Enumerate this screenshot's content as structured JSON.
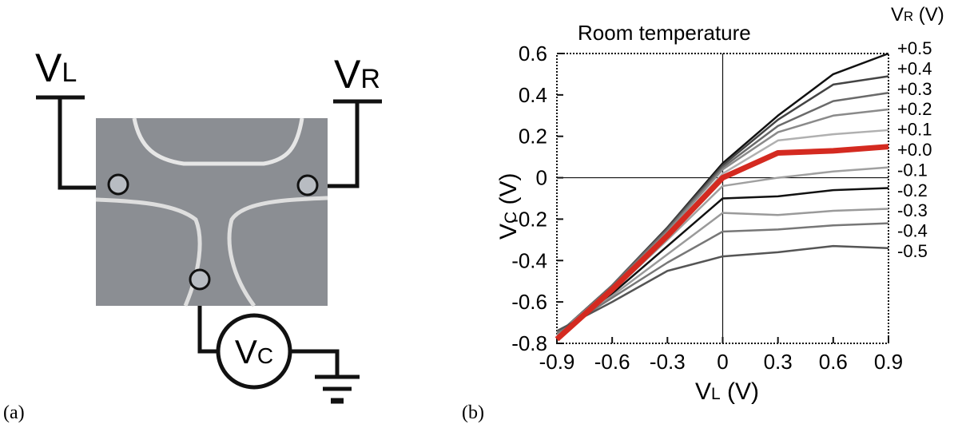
{
  "panel_a": {
    "panel_label": "(a)",
    "left_terminal": [
      "V",
      "L"
    ],
    "right_terminal": [
      "V",
      "R"
    ],
    "meter": [
      "V",
      "C"
    ]
  },
  "panel_b": {
    "panel_label": "(b)"
  },
  "chart_data": {
    "type": "line",
    "title": "Room temperature",
    "xlabel": [
      "V",
      "L",
      " (V)"
    ],
    "ylabel": [
      "V",
      "C",
      " (V)"
    ],
    "legend_title": [
      "V",
      "R",
      " (V)"
    ],
    "x": [
      -0.9,
      -0.6,
      -0.3,
      0,
      0.3,
      0.6,
      0.9
    ],
    "xlim": [
      -0.9,
      0.9
    ],
    "xticks": [
      -0.9,
      -0.6,
      -0.3,
      0,
      0.3,
      0.6,
      0.9
    ],
    "ylim": [
      -0.8,
      0.6
    ],
    "yticks": [
      -0.8,
      -0.6,
      -0.4,
      -0.2,
      0,
      0.2,
      0.4,
      0.6
    ],
    "legend": "right",
    "series": [
      {
        "name": "+0.5",
        "color": "#111111",
        "values": [
          -0.76,
          -0.52,
          -0.24,
          0.07,
          0.3,
          0.5,
          0.6
        ]
      },
      {
        "name": "+0.4",
        "color": "#444444",
        "values": [
          -0.76,
          -0.52,
          -0.24,
          0.06,
          0.28,
          0.45,
          0.49
        ]
      },
      {
        "name": "+0.3",
        "color": "#6a6a6a",
        "values": [
          -0.76,
          -0.52,
          -0.25,
          0.05,
          0.25,
          0.37,
          0.41
        ]
      },
      {
        "name": "+0.2",
        "color": "#8a8a8a",
        "values": [
          -0.76,
          -0.53,
          -0.26,
          0.04,
          0.22,
          0.3,
          0.33
        ]
      },
      {
        "name": "+0.1",
        "color": "#b0b0b0",
        "values": [
          -0.77,
          -0.53,
          -0.27,
          0.02,
          0.18,
          0.21,
          0.23
        ]
      },
      {
        "name": "+0.0",
        "color": "#d42a20",
        "values": [
          -0.78,
          -0.54,
          -0.28,
          0.0,
          0.12,
          0.13,
          0.15
        ]
      },
      {
        "name": "-0.1",
        "color": "#a0a0a0",
        "values": [
          -0.77,
          -0.55,
          -0.3,
          -0.04,
          0.0,
          0.03,
          0.05
        ]
      },
      {
        "name": "-0.2",
        "color": "#111111",
        "values": [
          -0.77,
          -0.56,
          -0.33,
          -0.1,
          -0.09,
          -0.06,
          -0.05
        ]
      },
      {
        "name": "-0.3",
        "color": "#9a9a9a",
        "values": [
          -0.76,
          -0.57,
          -0.37,
          -0.17,
          -0.18,
          -0.16,
          -0.15
        ]
      },
      {
        "name": "-0.4",
        "color": "#777777",
        "values": [
          -0.75,
          -0.58,
          -0.41,
          -0.26,
          -0.25,
          -0.23,
          -0.22
        ]
      },
      {
        "name": "-0.5",
        "color": "#555555",
        "values": [
          -0.74,
          -0.6,
          -0.45,
          -0.38,
          -0.36,
          -0.33,
          -0.34
        ]
      }
    ]
  }
}
